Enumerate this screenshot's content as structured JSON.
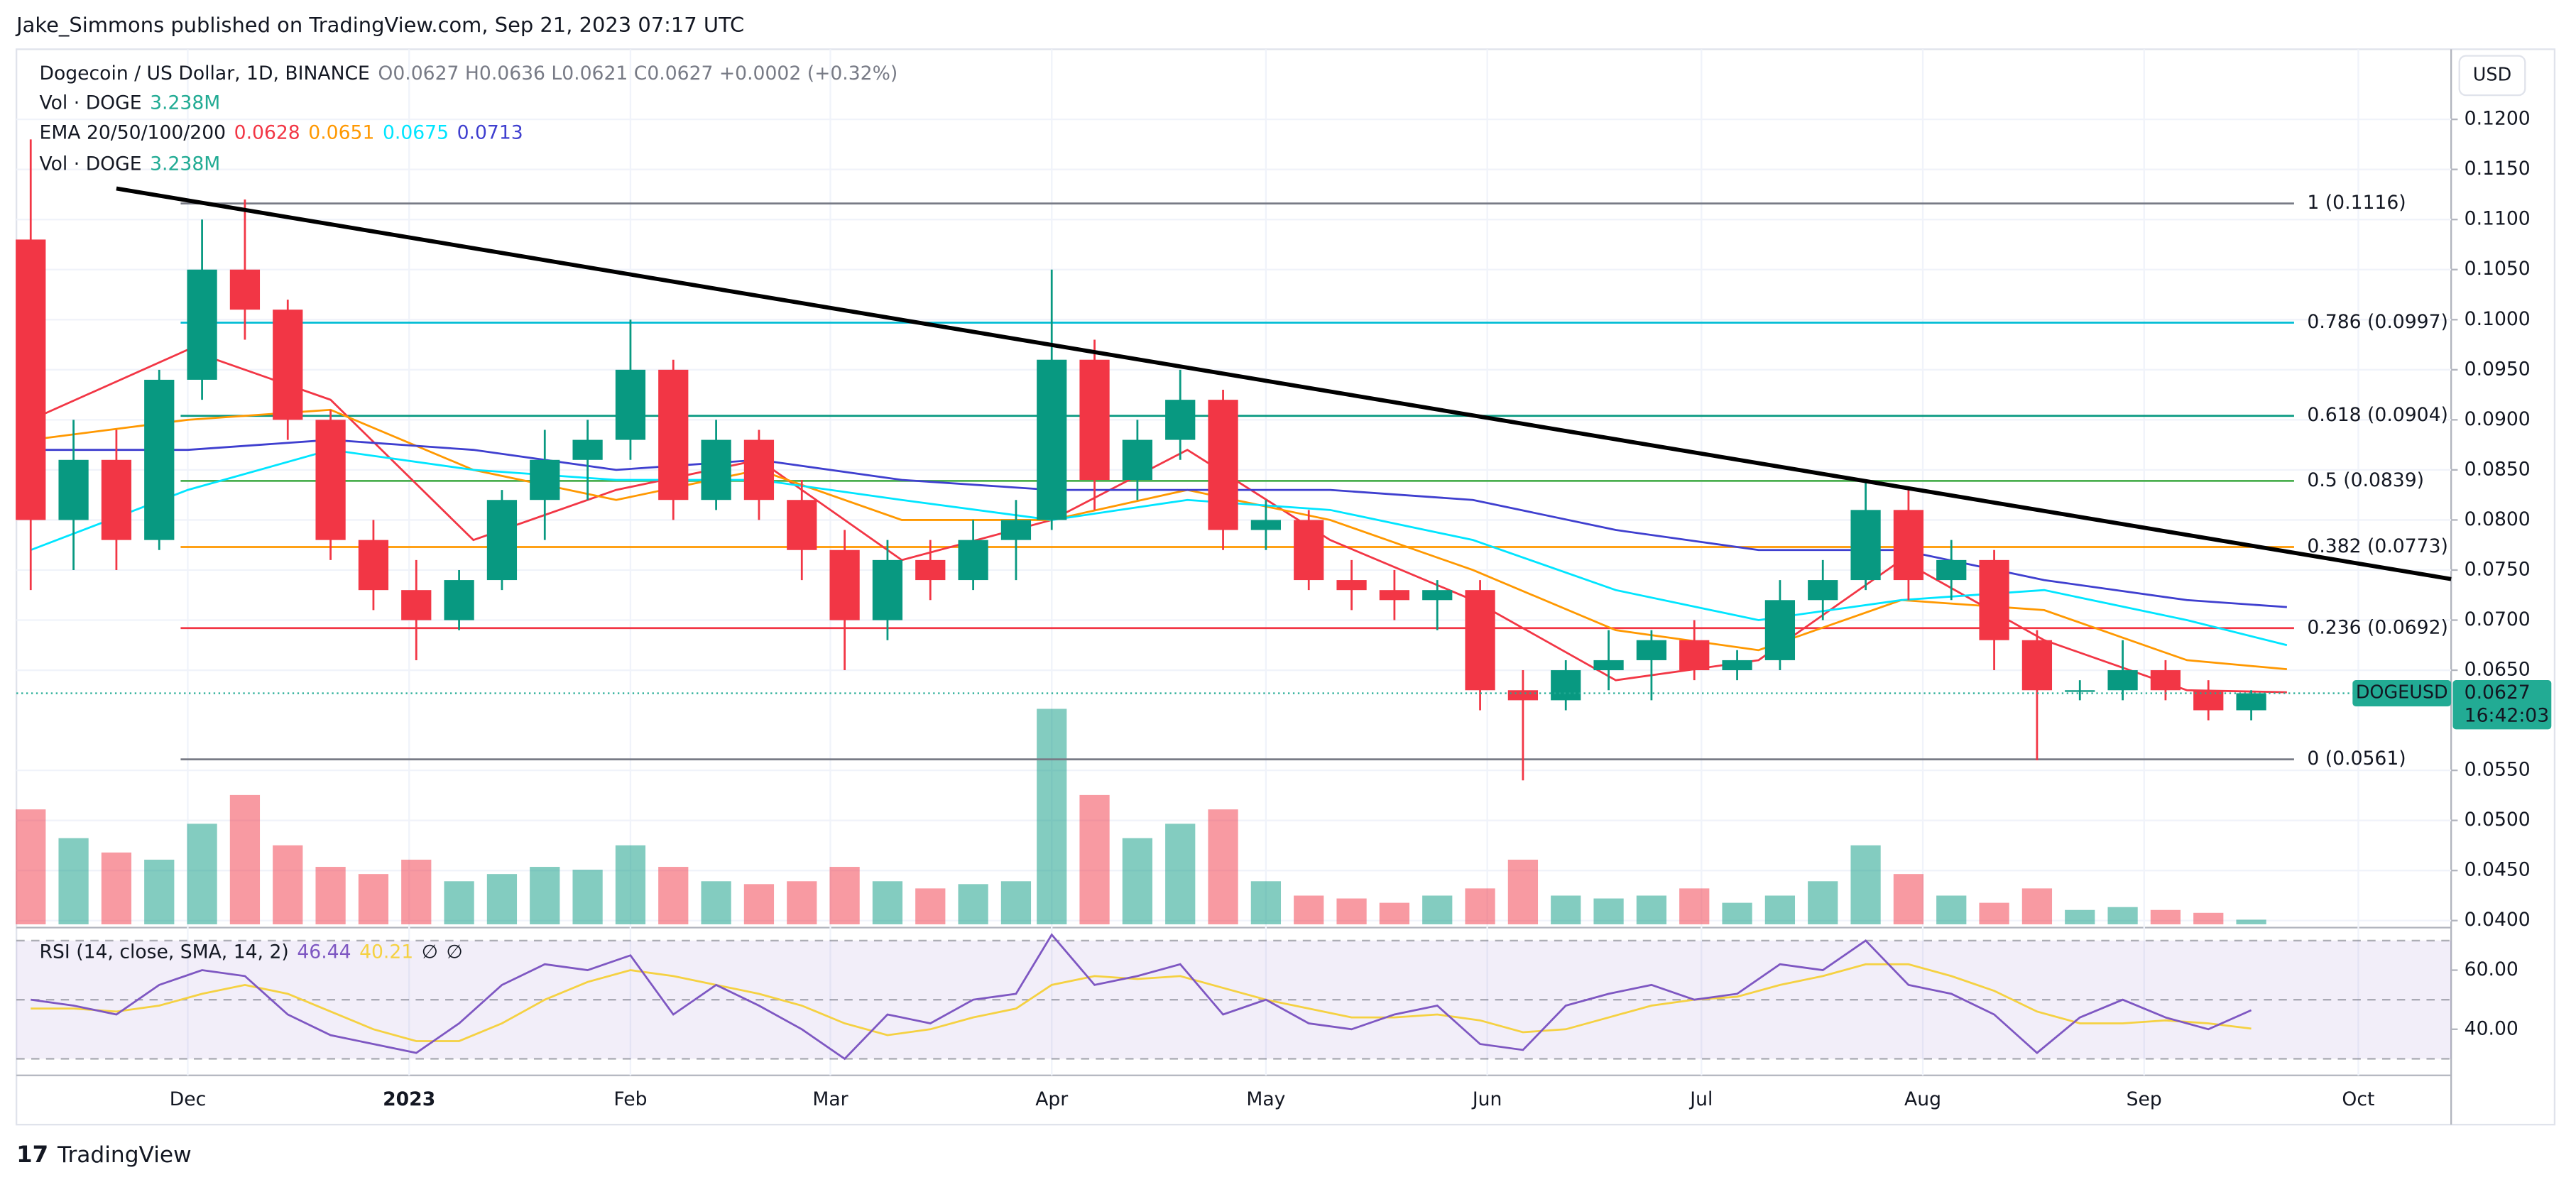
{
  "header": "Jake_Simmons published on TradingView.com, Sep 21, 2023 07:17 UTC",
  "footer": "TradingView",
  "currency_button": "USD",
  "chart_data": {
    "type": "candlestick",
    "title": "Dogecoin / US Dollar, 1D, BINANCE",
    "ohlc": "O0.0627  H0.0636  L0.0621  C0.0627  +0.0002 (+0.32%)",
    "volume_legend": "Vol · DOGE",
    "volume_last": "3.238M",
    "ema_legend": "EMA 20/50/100/200",
    "rsi_legend": "RSI (14, close, SMA, 14, 2)",
    "rsi_extra": [
      "∅",
      "∅"
    ],
    "up_color": "#089981",
    "down_color": "#f23645",
    "xlim": [
      -24,
      317
    ],
    "xticks": [
      {
        "value": 0,
        "label": "Dec"
      },
      {
        "value": 31,
        "label": "2023"
      },
      {
        "value": 62,
        "label": "Feb"
      },
      {
        "value": 90,
        "label": "Mar"
      },
      {
        "value": 121,
        "label": "Apr"
      },
      {
        "value": 151,
        "label": "May"
      },
      {
        "value": 182,
        "label": "Jun"
      },
      {
        "value": 212,
        "label": "Jul"
      },
      {
        "value": 243,
        "label": "Aug"
      },
      {
        "value": 274,
        "label": "Sep"
      },
      {
        "value": 304,
        "label": "Oct"
      }
    ],
    "ylim": [
      0.0393,
      0.127
    ],
    "yticks": [
      {
        "value": 0.04,
        "label": "0.0400"
      },
      {
        "value": 0.045,
        "label": "0.0450"
      },
      {
        "value": 0.05,
        "label": "0.0500"
      },
      {
        "value": 0.055,
        "label": "0.0550"
      },
      {
        "value": 0.065,
        "label": "0.0650"
      },
      {
        "value": 0.07,
        "label": "0.0700"
      },
      {
        "value": 0.075,
        "label": "0.0750"
      },
      {
        "value": 0.08,
        "label": "0.0800"
      },
      {
        "value": 0.085,
        "label": "0.0850"
      },
      {
        "value": 0.09,
        "label": "0.0900"
      },
      {
        "value": 0.095,
        "label": "0.0950"
      },
      {
        "value": 0.1,
        "label": "0.1000"
      },
      {
        "value": 0.105,
        "label": "0.1050"
      },
      {
        "value": 0.11,
        "label": "0.1100"
      },
      {
        "value": 0.115,
        "label": "0.1150"
      },
      {
        "value": 0.12,
        "label": "0.1200"
      }
    ],
    "grid": true,
    "candles": {
      "x": [
        -22,
        -16,
        -10,
        -4,
        2,
        8,
        14,
        20,
        26,
        32,
        38,
        44,
        50,
        56,
        62,
        68,
        74,
        80,
        86,
        92,
        98,
        104,
        110,
        116,
        121,
        127,
        133,
        139,
        145,
        151,
        157,
        163,
        169,
        175,
        181,
        187,
        193,
        199,
        205,
        211,
        217,
        223,
        229,
        235,
        241,
        247,
        253,
        259,
        265,
        271,
        277,
        283,
        289
      ],
      "open": [
        0.108,
        0.08,
        0.086,
        0.078,
        0.094,
        0.105,
        0.101,
        0.09,
        0.078,
        0.073,
        0.07,
        0.074,
        0.082,
        0.086,
        0.088,
        0.095,
        0.082,
        0.088,
        0.082,
        0.077,
        0.07,
        0.076,
        0.074,
        0.078,
        0.08,
        0.096,
        0.084,
        0.088,
        0.092,
        0.079,
        0.08,
        0.074,
        0.073,
        0.072,
        0.073,
        0.063,
        0.062,
        0.065,
        0.066,
        0.068,
        0.065,
        0.066,
        0.072,
        0.074,
        0.081,
        0.074,
        0.076,
        0.068,
        0.063,
        0.063,
        0.065,
        0.063,
        0.061
      ],
      "high": [
        0.118,
        0.09,
        0.089,
        0.095,
        0.11,
        0.112,
        0.102,
        0.091,
        0.08,
        0.076,
        0.075,
        0.083,
        0.089,
        0.09,
        0.1,
        0.096,
        0.09,
        0.089,
        0.084,
        0.079,
        0.078,
        0.078,
        0.08,
        0.082,
        0.105,
        0.098,
        0.09,
        0.095,
        0.093,
        0.082,
        0.081,
        0.076,
        0.075,
        0.074,
        0.074,
        0.065,
        0.066,
        0.069,
        0.069,
        0.07,
        0.067,
        0.074,
        0.076,
        0.084,
        0.083,
        0.078,
        0.077,
        0.069,
        0.064,
        0.068,
        0.066,
        0.064,
        0.063
      ],
      "low": [
        0.073,
        0.075,
        0.075,
        0.077,
        0.092,
        0.098,
        0.088,
        0.076,
        0.071,
        0.066,
        0.069,
        0.073,
        0.078,
        0.082,
        0.086,
        0.08,
        0.081,
        0.08,
        0.074,
        0.065,
        0.068,
        0.072,
        0.073,
        0.074,
        0.079,
        0.081,
        0.082,
        0.086,
        0.077,
        0.077,
        0.073,
        0.071,
        0.07,
        0.069,
        0.061,
        0.054,
        0.061,
        0.063,
        0.062,
        0.064,
        0.064,
        0.065,
        0.07,
        0.073,
        0.072,
        0.072,
        0.065,
        0.056,
        0.062,
        0.062,
        0.062,
        0.06,
        0.06
      ],
      "close": [
        0.08,
        0.086,
        0.078,
        0.094,
        0.105,
        0.101,
        0.09,
        0.078,
        0.073,
        0.07,
        0.074,
        0.082,
        0.086,
        0.088,
        0.095,
        0.082,
        0.088,
        0.082,
        0.077,
        0.07,
        0.076,
        0.074,
        0.078,
        0.08,
        0.096,
        0.084,
        0.088,
        0.092,
        0.079,
        0.08,
        0.074,
        0.073,
        0.072,
        0.073,
        0.063,
        0.062,
        0.065,
        0.066,
        0.068,
        0.065,
        0.066,
        0.072,
        0.074,
        0.081,
        0.074,
        0.076,
        0.068,
        0.063,
        0.063,
        0.065,
        0.063,
        0.061,
        0.0627
      ]
    },
    "volume": {
      "ylim": [
        0,
        160
      ],
      "values": [
        80,
        60,
        50,
        45,
        70,
        90,
        55,
        40,
        35,
        45,
        30,
        35,
        40,
        38,
        55,
        40,
        30,
        28,
        30,
        40,
        30,
        25,
        28,
        30,
        150,
        90,
        60,
        70,
        80,
        30,
        20,
        18,
        15,
        20,
        25,
        45,
        20,
        18,
        20,
        25,
        15,
        20,
        30,
        55,
        35,
        20,
        15,
        25,
        10,
        12,
        10,
        8,
        3.238
      ]
    },
    "ema_x": [
      -22,
      0,
      20,
      40,
      60,
      80,
      100,
      121,
      140,
      160,
      180,
      200,
      220,
      240,
      260,
      280,
      294
    ],
    "series": [
      {
        "name": "20",
        "color": "#f23645",
        "values": [
          0.09,
          0.097,
          0.092,
          0.078,
          0.083,
          0.086,
          0.076,
          0.08,
          0.087,
          0.078,
          0.072,
          0.064,
          0.066,
          0.076,
          0.068,
          0.063,
          0.0628
        ]
      },
      {
        "name": "50",
        "color": "#ff9800",
        "values": [
          0.088,
          0.09,
          0.091,
          0.085,
          0.082,
          0.085,
          0.08,
          0.08,
          0.083,
          0.08,
          0.075,
          0.069,
          0.067,
          0.072,
          0.071,
          0.066,
          0.0651
        ]
      },
      {
        "name": "100",
        "color": "#00e5ff",
        "values": [
          0.077,
          0.083,
          0.087,
          0.085,
          0.084,
          0.084,
          0.082,
          0.08,
          0.082,
          0.081,
          0.078,
          0.073,
          0.07,
          0.072,
          0.073,
          0.07,
          0.0675
        ]
      },
      {
        "name": "200",
        "color": "#3f3fcf",
        "values": [
          0.087,
          0.087,
          0.088,
          0.087,
          0.085,
          0.086,
          0.084,
          0.083,
          0.083,
          0.083,
          0.082,
          0.079,
          0.077,
          0.077,
          0.074,
          0.072,
          0.0713
        ]
      }
    ],
    "trendline": {
      "x": [
        -10,
        317
      ],
      "values": [
        0.1131,
        0.0741
      ],
      "color": "#000000"
    },
    "fib_x": [
      -1,
      295
    ],
    "fib": [
      {
        "value": 0.1116,
        "label": "1 (0.1116)",
        "color": "#787b86"
      },
      {
        "value": 0.0997,
        "label": "0.786 (0.0997)",
        "color": "#00bcd4"
      },
      {
        "value": 0.0904,
        "label": "0.618 (0.0904)",
        "color": "#089981"
      },
      {
        "value": 0.0839,
        "label": "0.5 (0.0839)",
        "color": "#4caf50"
      },
      {
        "value": 0.0773,
        "label": "0.382 (0.0773)",
        "color": "#ff9800"
      },
      {
        "value": 0.0692,
        "label": "0.236 (0.0692)",
        "color": "#f23645"
      },
      {
        "value": 0.0561,
        "label": "0 (0.0561)",
        "color": "#787b86"
      }
    ],
    "price_tag": {
      "symbol": "DOGEUSD",
      "value": 0.0627,
      "countdown": "16:42:03",
      "color": "#22ab94"
    },
    "rsi": {
      "ylim": [
        24.4,
        74.4
      ],
      "yticks": [
        {
          "value": 60,
          "label": "60.00"
        },
        {
          "value": 40,
          "label": "40.00"
        }
      ],
      "levels": [
        30,
        50,
        70
      ],
      "values": [
        50,
        48,
        45,
        55,
        60,
        58,
        45,
        38,
        35,
        32,
        42,
        55,
        62,
        60,
        65,
        45,
        55,
        48,
        40,
        30,
        45,
        42,
        50,
        52,
        72,
        55,
        58,
        62,
        45,
        50,
        42,
        40,
        45,
        48,
        35,
        33,
        48,
        52,
        55,
        50,
        52,
        62,
        60,
        70,
        55,
        52,
        45,
        32,
        44,
        50,
        44,
        40,
        46.44
      ],
      "sma": [
        47,
        47,
        46,
        48,
        52,
        55,
        52,
        46,
        40,
        36,
        36,
        42,
        50,
        56,
        60,
        58,
        55,
        52,
        48,
        42,
        38,
        40,
        44,
        47,
        55,
        58,
        57,
        58,
        54,
        50,
        47,
        44,
        44,
        45,
        43,
        39,
        40,
        44,
        48,
        50,
        51,
        55,
        58,
        62,
        62,
        58,
        53,
        46,
        42,
        42,
        43,
        42,
        40.21
      ],
      "color": "#7e57c2",
      "sma_color": "#f5d142"
    }
  }
}
